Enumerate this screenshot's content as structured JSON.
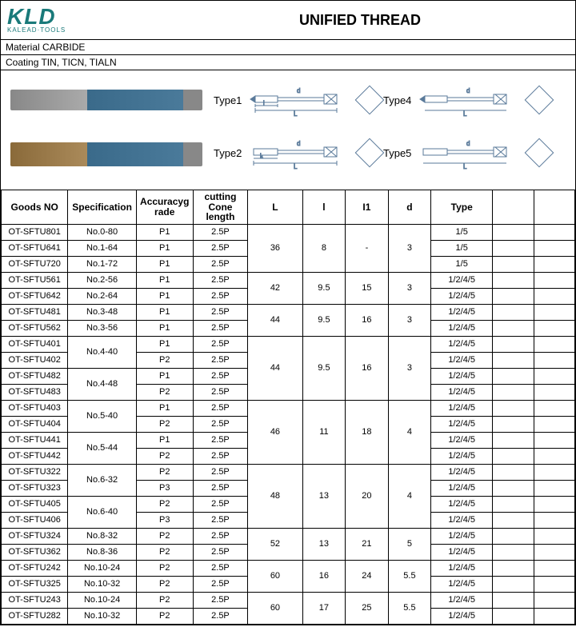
{
  "brand": {
    "logo": "KLD",
    "sub": "KALEAD·TOOLS"
  },
  "title": "UNIFIED THREAD",
  "material": "Material  CARBIDE",
  "coating": "Coating   TIN,  TICN,  TIALN",
  "typeLabels": {
    "t1": "Type1",
    "t2": "Type2",
    "t4": "Type4",
    "t5": "Type5"
  },
  "headers": {
    "goods": "Goods NO",
    "spec": "Specification",
    "acc": "Accuracyg\nrade",
    "cone": "cutting\nCone length",
    "L": "L",
    "l": "l",
    "l1": "I1",
    "d": "d",
    "type": "Type",
    "e1": "",
    "e2": ""
  },
  "groups": [
    {
      "L": "36",
      "l": "8",
      "l1": "-",
      "d": "3",
      "rows": [
        {
          "goods": "OT-SFTU801",
          "spec": "No.0-80",
          "specSpan": 1,
          "acc": "P1",
          "cone": "2.5P",
          "type": "1/5"
        },
        {
          "goods": "OT-SFTU641",
          "spec": "No.1-64",
          "specSpan": 1,
          "acc": "P1",
          "cone": "2.5P",
          "type": "1/5"
        },
        {
          "goods": "OT-SFTU720",
          "spec": "No.1-72",
          "specSpan": 1,
          "acc": "P1",
          "cone": "2.5P",
          "type": "1/5"
        }
      ]
    },
    {
      "L": "42",
      "l": "9.5",
      "l1": "15",
      "d": "3",
      "rows": [
        {
          "goods": "OT-SFTU561",
          "spec": "No.2-56",
          "specSpan": 1,
          "acc": "P1",
          "cone": "2.5P",
          "type": "1/2/4/5"
        },
        {
          "goods": "OT-SFTU642",
          "spec": "No.2-64",
          "specSpan": 1,
          "acc": "P1",
          "cone": "2.5P",
          "type": "1/2/4/5"
        }
      ]
    },
    {
      "L": "44",
      "l": "9.5",
      "l1": "16",
      "d": "3",
      "rows": [
        {
          "goods": "OT-SFTU481",
          "spec": "No.3-48",
          "specSpan": 1,
          "acc": "P1",
          "cone": "2.5P",
          "type": "1/2/4/5"
        },
        {
          "goods": "OT-SFTU562",
          "spec": "No.3-56",
          "specSpan": 1,
          "acc": "P1",
          "cone": "2.5P",
          "type": "1/2/4/5"
        }
      ]
    },
    {
      "L": "44",
      "l": "9.5",
      "l1": "16",
      "d": "3",
      "rows": [
        {
          "goods": "OT-SFTU401",
          "spec": "No.4-40",
          "specSpan": 2,
          "acc": "P1",
          "cone": "2.5P",
          "type": "1/2/4/5"
        },
        {
          "goods": "OT-SFTU402",
          "spec": "",
          "specSpan": 0,
          "acc": "P2",
          "cone": "2.5P",
          "type": "1/2/4/5"
        },
        {
          "goods": "OT-SFTU482",
          "spec": "No.4-48",
          "specSpan": 2,
          "acc": "P1",
          "cone": "2.5P",
          "type": "1/2/4/5"
        },
        {
          "goods": "OT-SFTU483",
          "spec": "",
          "specSpan": 0,
          "acc": "P2",
          "cone": "2.5P",
          "type": "1/2/4/5"
        }
      ]
    },
    {
      "L": "46",
      "l": "11",
      "l1": "18",
      "d": "4",
      "rows": [
        {
          "goods": "OT-SFTU403",
          "spec": "No.5-40",
          "specSpan": 2,
          "acc": "P1",
          "cone": "2.5P",
          "type": "1/2/4/5"
        },
        {
          "goods": "OT-SFTU404",
          "spec": "",
          "specSpan": 0,
          "acc": "P2",
          "cone": "2.5P",
          "type": "1/2/4/5"
        },
        {
          "goods": "OT-SFTU441",
          "spec": "No.5-44",
          "specSpan": 2,
          "acc": "P1",
          "cone": "2.5P",
          "type": "1/2/4/5"
        },
        {
          "goods": "OT-SFTU442",
          "spec": "",
          "specSpan": 0,
          "acc": "P2",
          "cone": "2.5P",
          "type": "1/2/4/5"
        }
      ]
    },
    {
      "L": "48",
      "l": "13",
      "l1": "20",
      "d": "4",
      "rows": [
        {
          "goods": "OT-SFTU322",
          "spec": "No.6-32",
          "specSpan": 2,
          "acc": "P2",
          "cone": "2.5P",
          "type": "1/2/4/5"
        },
        {
          "goods": "OT-SFTU323",
          "spec": "",
          "specSpan": 0,
          "acc": "P3",
          "cone": "2.5P",
          "type": "1/2/4/5"
        },
        {
          "goods": "OT-SFTU405",
          "spec": "No.6-40",
          "specSpan": 2,
          "acc": "P2",
          "cone": "2.5P",
          "type": "1/2/4/5"
        },
        {
          "goods": "OT-SFTU406",
          "spec": "",
          "specSpan": 0,
          "acc": "P3",
          "cone": "2.5P",
          "type": "1/2/4/5"
        }
      ]
    },
    {
      "L": "52",
      "l": "13",
      "l1": "21",
      "d": "5",
      "rows": [
        {
          "goods": "OT-SFTU324",
          "spec": "No.8-32",
          "specSpan": 1,
          "acc": "P2",
          "cone": "2.5P",
          "type": "1/2/4/5"
        },
        {
          "goods": "OT-SFTU362",
          "spec": "No.8-36",
          "specSpan": 1,
          "acc": "P2",
          "cone": "2.5P",
          "type": "1/2/4/5"
        }
      ]
    },
    {
      "L": "60",
      "l": "16",
      "l1": "24",
      "d": "5.5",
      "rows": [
        {
          "goods": "OT-SFTU242",
          "spec": "No.10-24",
          "specSpan": 1,
          "acc": "P2",
          "cone": "2.5P",
          "type": "1/2/4/5"
        },
        {
          "goods": "OT-SFTU325",
          "spec": "No.10-32",
          "specSpan": 1,
          "acc": "P2",
          "cone": "2.5P",
          "type": "1/2/4/5"
        }
      ]
    },
    {
      "L": "60",
      "l": "17",
      "l1": "25",
      "d": "5.5",
      "rows": [
        {
          "goods": "OT-SFTU243",
          "spec": "No.10-24",
          "specSpan": 1,
          "acc": "P2",
          "cone": "2.5P",
          "type": "1/2/4/5"
        },
        {
          "goods": "OT-SFTU282",
          "spec": "No.10-32",
          "specSpan": 1,
          "acc": "P2",
          "cone": "2.5P",
          "type": "1/2/4/5"
        }
      ]
    }
  ]
}
